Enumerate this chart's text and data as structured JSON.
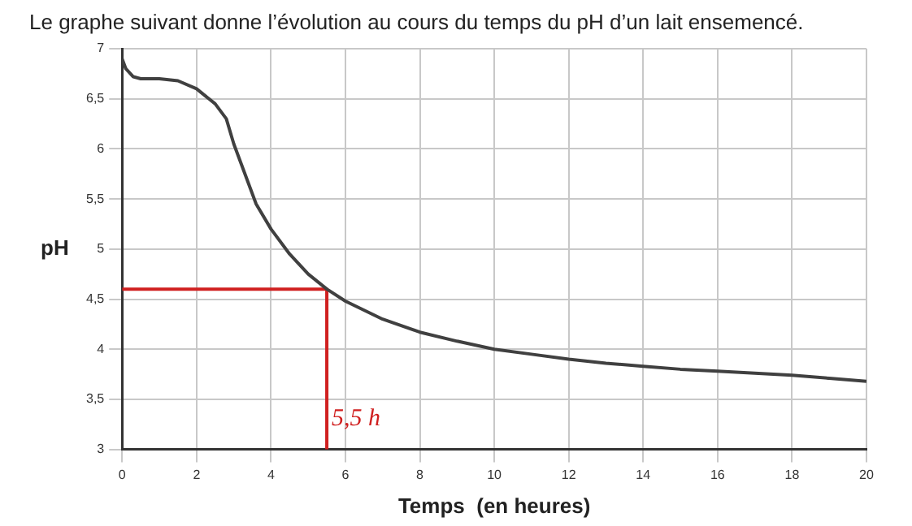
{
  "chart_data": {
    "type": "line",
    "title": "Le graphe suivant donne l’évolution au cours du temps du pH d’un lait ensemencé.",
    "xlabel": "Temps  (en heures)",
    "ylabel": "pH",
    "series": [
      {
        "color": "#404040",
        "x": [
          0,
          0.1,
          0.3,
          0.5,
          1,
          1.5,
          2,
          2.5,
          2.8,
          3,
          3.3,
          3.6,
          4,
          4.5,
          5,
          5.5,
          6,
          7,
          8,
          9,
          10,
          11,
          12,
          13,
          14,
          15,
          16,
          17,
          18,
          19,
          20
        ],
        "values": [
          6.9,
          6.8,
          6.72,
          6.7,
          6.7,
          6.68,
          6.6,
          6.45,
          6.3,
          6.05,
          5.75,
          5.45,
          5.2,
          4.95,
          4.75,
          4.6,
          4.48,
          4.3,
          4.17,
          4.08,
          4.0,
          3.95,
          3.9,
          3.86,
          3.83,
          3.8,
          3.78,
          3.76,
          3.74,
          3.71,
          3.68
        ]
      },
      {
        "color": "#d02020",
        "x": [
          0,
          5.5,
          5.5
        ],
        "values": [
          4.6,
          4.6,
          3
        ]
      }
    ],
    "annotations": [
      {
        "text": "5,5 h",
        "x": 5.5,
        "y": 3.3
      }
    ],
    "xlim": [
      0,
      20
    ],
    "xticks": [
      0,
      2,
      4,
      6,
      8,
      10,
      12,
      14,
      16,
      18,
      20
    ],
    "ylim": [
      3,
      7
    ],
    "yticks": [
      3,
      {
        "value": 3.5,
        "label": "3,5"
      },
      4,
      {
        "value": 4.5,
        "label": "4,5"
      },
      5,
      {
        "value": 5.5,
        "label": "5,5"
      },
      6,
      {
        "value": 6.5,
        "label": "6,5"
      },
      7
    ],
    "grid": true,
    "marker": "none",
    "line_style": "solid",
    "legend": false
  }
}
